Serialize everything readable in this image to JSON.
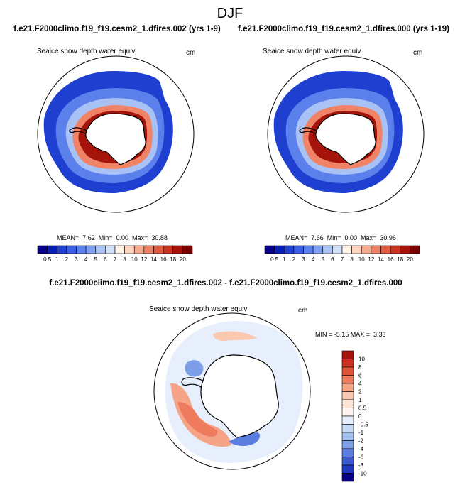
{
  "chart_data": {
    "type": "polar-map",
    "title": "DJF",
    "panels": [
      {
        "title": "f.e21.F2000climo.f19_f19.cesm2_1.dfires.002 (yrs 1-9)",
        "left_label": "Seaice snow depth water equiv",
        "right_label": "cm",
        "stats_text": "MEAN=  7.62  Min=  0.00  Max=  30.88",
        "mean": 7.62,
        "min": 0.0,
        "max": 30.88,
        "colorbar": {
          "orientation": "horizontal",
          "levels": [
            "0.5",
            "1",
            "2",
            "3",
            "4",
            "5",
            "6",
            "7",
            "8",
            "10",
            "12",
            "14",
            "16",
            "18",
            "20"
          ],
          "colors": [
            "#08008a",
            "#0a1fb4",
            "#2340cf",
            "#3a5fe0",
            "#5b80ec",
            "#7fa0f2",
            "#a8c2f6",
            "#d0e0fa",
            "#fff2e6",
            "#fcd3bf",
            "#f7ac8f",
            "#f08366",
            "#e05a3e",
            "#c8341f",
            "#a5140a",
            "#7c0000"
          ]
        }
      },
      {
        "title": "f.e21.F2000climo.f19_f19.cesm2_1.dfires.000 (yrs 1-19)",
        "left_label": "Seaice snow depth water equiv",
        "right_label": "cm",
        "stats_text": "MEAN=  7.66  Min=  0.00  Max=  30.96",
        "mean": 7.66,
        "min": 0.0,
        "max": 30.96,
        "colorbar": {
          "orientation": "horizontal",
          "levels": [
            "0.5",
            "1",
            "2",
            "3",
            "4",
            "5",
            "6",
            "7",
            "8",
            "10",
            "12",
            "14",
            "16",
            "18",
            "20"
          ],
          "colors": [
            "#08008a",
            "#0a1fb4",
            "#2340cf",
            "#3a5fe0",
            "#5b80ec",
            "#7fa0f2",
            "#a8c2f6",
            "#d0e0fa",
            "#fff2e6",
            "#fcd3bf",
            "#f7ac8f",
            "#f08366",
            "#e05a3e",
            "#c8341f",
            "#a5140a",
            "#7c0000"
          ]
        }
      },
      {
        "title": "f.e21.F2000climo.f19_f19.cesm2_1.dfires.002 - f.e21.F2000climo.f19_f19.cesm2_1.dfires.000",
        "left_label": "Seaice snow depth water equiv",
        "right_label": "cm",
        "stats_text": "MIN = -5.15 MAX =  3.33",
        "min": -5.15,
        "max": 3.33,
        "colorbar": {
          "orientation": "vertical",
          "levels": [
            "10",
            "8",
            "6",
            "4",
            "2",
            "1",
            "0.5",
            "0",
            "-0.5",
            "-1",
            "-2",
            "-4",
            "-6",
            "-8",
            "-10"
          ],
          "colors": [
            "#a5140a",
            "#c8341f",
            "#e0553a",
            "#ee7b5e",
            "#f6a487",
            "#fac8b0",
            "#fde3d4",
            "#fff4ee",
            "#e6effb",
            "#c6d9f5",
            "#a3c0ef",
            "#7c9fe8",
            "#5a7ee0",
            "#3a5bd3",
            "#1f38bd",
            "#08008a"
          ]
        }
      }
    ]
  }
}
